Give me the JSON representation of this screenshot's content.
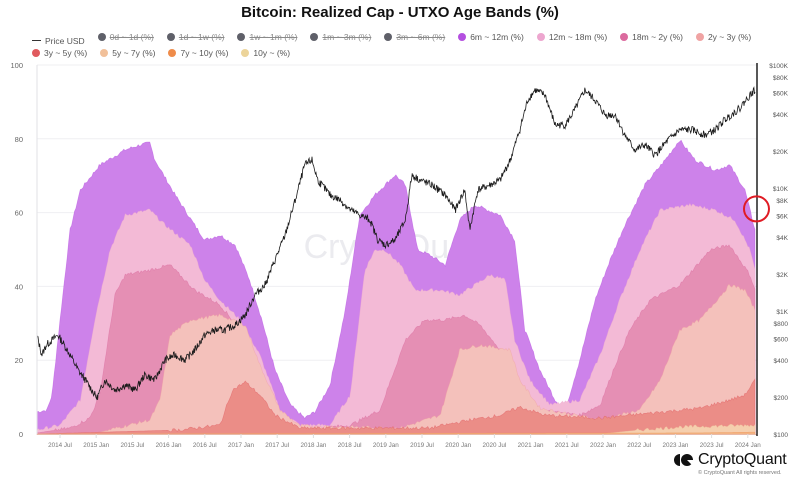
{
  "chart_data": {
    "type": "area",
    "title": "Bitcoin: Realized Cap - UTXO Age Bands (%)",
    "stacked": true,
    "ylim_left": [
      0,
      100
    ],
    "yticks_left": [
      "0",
      "20",
      "40",
      "60",
      "80",
      "100"
    ],
    "yticks_left_values": [
      0,
      20,
      40,
      60,
      80,
      100
    ],
    "y_right_scale": "log",
    "ylim_right": [
      100,
      100000
    ],
    "yticks_right": [
      "$100K",
      "$80K",
      "$60K",
      "$40K",
      "$20K",
      "$10K",
      "$8K",
      "$6K",
      "$4K",
      "$2K",
      "$1K",
      "$800",
      "$600",
      "$400",
      "$200",
      "$100"
    ],
    "yticks_right_values": [
      100000,
      80000,
      60000,
      40000,
      20000,
      10000,
      8000,
      6000,
      4000,
      2000,
      1000,
      800,
      600,
      400,
      200,
      100
    ],
    "xlim": [
      2014.18,
      2024.13
    ],
    "xticks": [
      "2014 Jul",
      "2015 Jan",
      "2015 Jul",
      "2016 Jan",
      "2016 Jul",
      "2017 Jan",
      "2017 Jul",
      "2018 Jan",
      "2018 Jul",
      "2019 Jan",
      "2019 Jul",
      "2020 Jan",
      "2020 Jul",
      "2021 Jan",
      "2021 Jul",
      "2022 Jan",
      "2022 Jul",
      "2023 Jan",
      "2023 Jul",
      "2024 Jan"
    ],
    "xticks_values": [
      2014.5,
      2015.0,
      2015.5,
      2016.0,
      2016.5,
      2017.0,
      2017.5,
      2018.0,
      2018.5,
      2019.0,
      2019.5,
      2020.0,
      2020.5,
      2021.0,
      2021.5,
      2022.0,
      2022.5,
      2023.0,
      2023.5,
      2024.0
    ],
    "grid": true,
    "legend_position": "top-left",
    "watermark": "CryptoQuant",
    "annotation": {
      "type": "circle",
      "color": "#e01b24",
      "x": 2024.12,
      "y_pct": 61
    },
    "legend": [
      {
        "name": "Price USD",
        "color": "#222222",
        "kind": "line",
        "hidden": false
      },
      {
        "name": "0d ~ 1d (%)",
        "color": "#5f6069",
        "kind": "dot",
        "hidden": true
      },
      {
        "name": "1d ~ 1w (%)",
        "color": "#5f6069",
        "kind": "dot",
        "hidden": true
      },
      {
        "name": "1w ~ 1m (%)",
        "color": "#5f6069",
        "kind": "dot",
        "hidden": true
      },
      {
        "name": "1m ~ 3m (%)",
        "color": "#5f6069",
        "kind": "dot",
        "hidden": true
      },
      {
        "name": "3m ~ 6m (%)",
        "color": "#5f6069",
        "kind": "dot",
        "hidden": true
      },
      {
        "name": "6m ~ 12m (%)",
        "color": "#b44fe0",
        "kind": "dot",
        "hidden": false
      },
      {
        "name": "12m ~ 18m (%)",
        "color": "#eda6cf",
        "kind": "dot",
        "hidden": false
      },
      {
        "name": "18m ~ 2y (%)",
        "color": "#db6a9e",
        "kind": "dot",
        "hidden": false
      },
      {
        "name": "2y ~ 3y (%)",
        "color": "#f0a3a3",
        "kind": "dot",
        "hidden": false
      },
      {
        "name": "3y ~ 5y (%)",
        "color": "#e05a5e",
        "kind": "dot",
        "hidden": false
      },
      {
        "name": "5y ~ 7y (%)",
        "color": "#f1c09a",
        "kind": "dot",
        "hidden": false
      },
      {
        "name": "7y ~ 10y (%)",
        "color": "#ef8c4a",
        "kind": "dot",
        "hidden": false
      },
      {
        "name": "10y ~ (%)",
        "color": "#ecd49a",
        "kind": "dot",
        "hidden": false
      }
    ],
    "area_fills": {
      "6m ~ 12m (%)": "#cd82ea",
      "12m ~ 18m (%)": "#f3bad6",
      "18m ~ 2y (%)": "#e58fb4",
      "2y ~ 3y (%)": "#f4c1bb",
      "3y ~ 5y (%)": "#eb8d87",
      "5y ~ 7y (%)": "#f5cfae",
      "7y ~ 10y (%)": "#f3b487",
      "10y ~ (%)": "#f2deb0"
    },
    "bands": [
      {
        "name": "6m ~ 12m (%)",
        "points": [
          [
            2014.18,
            6.0
          ],
          [
            2014.32,
            6.5
          ],
          [
            2014.39,
            10.6
          ],
          [
            2014.47,
            25.5
          ],
          [
            2014.64,
            55.3
          ],
          [
            2014.78,
            66.1
          ],
          [
            2015.05,
            72.9
          ],
          [
            2015.4,
            77.0
          ],
          [
            2015.6,
            78.3
          ],
          [
            2015.74,
            78.9
          ],
          [
            2015.81,
            74.3
          ],
          [
            2016.09,
            64.8
          ],
          [
            2016.36,
            56.6
          ],
          [
            2016.5,
            52.6
          ],
          [
            2016.71,
            53.9
          ],
          [
            2016.92,
            51.2
          ],
          [
            2017.12,
            41.7
          ],
          [
            2017.29,
            30.9
          ],
          [
            2017.47,
            17.3
          ],
          [
            2017.68,
            7.9
          ],
          [
            2017.88,
            4.3
          ],
          [
            2018.02,
            6.0
          ],
          [
            2018.23,
            13.3
          ],
          [
            2018.44,
            33.6
          ],
          [
            2018.64,
            59.3
          ],
          [
            2018.85,
            64.8
          ],
          [
            2019.13,
            70.2
          ],
          [
            2019.27,
            67.5
          ],
          [
            2019.44,
            49.9
          ],
          [
            2019.61,
            48.5
          ],
          [
            2019.82,
            45.8
          ],
          [
            2020.02,
            58.0
          ],
          [
            2020.23,
            62.1
          ],
          [
            2020.58,
            59.3
          ],
          [
            2020.78,
            52.6
          ],
          [
            2020.92,
            28.2
          ],
          [
            2021.13,
            17.3
          ],
          [
            2021.34,
            9.2
          ],
          [
            2021.48,
            6.5
          ],
          [
            2021.68,
            20.1
          ],
          [
            2021.89,
            36.3
          ],
          [
            2022.1,
            47.2
          ],
          [
            2022.3,
            56.6
          ],
          [
            2022.58,
            67.5
          ],
          [
            2022.86,
            74.3
          ],
          [
            2023.06,
            79.7
          ],
          [
            2023.27,
            74.3
          ],
          [
            2023.55,
            71.5
          ],
          [
            2023.75,
            72.9
          ],
          [
            2023.96,
            66.1
          ],
          [
            2024.1,
            55.3
          ]
        ]
      },
      {
        "name": "12m ~ 18m (%)",
        "points": [
          [
            2014.18,
            1.1
          ],
          [
            2014.5,
            2.4
          ],
          [
            2014.78,
            9.2
          ],
          [
            2014.98,
            30.9
          ],
          [
            2015.19,
            49.9
          ],
          [
            2015.4,
            59.3
          ],
          [
            2015.74,
            60.7
          ],
          [
            2015.95,
            56.6
          ],
          [
            2016.3,
            51.2
          ],
          [
            2016.5,
            41.7
          ],
          [
            2016.71,
            36.3
          ],
          [
            2016.99,
            30.9
          ],
          [
            2017.26,
            21.4
          ],
          [
            2017.54,
            6.5
          ],
          [
            2017.81,
            2.4
          ],
          [
            2018.23,
            2.4
          ],
          [
            2018.51,
            10.6
          ],
          [
            2018.71,
            44.4
          ],
          [
            2018.85,
            49.9
          ],
          [
            2018.99,
            49.9
          ],
          [
            2019.2,
            45.8
          ],
          [
            2019.4,
            39.0
          ],
          [
            2019.75,
            39.0
          ],
          [
            2020.02,
            37.7
          ],
          [
            2020.44,
            43.1
          ],
          [
            2020.65,
            41.7
          ],
          [
            2020.78,
            25.5
          ],
          [
            2020.99,
            14.6
          ],
          [
            2021.27,
            7.9
          ],
          [
            2021.68,
            9.2
          ],
          [
            2021.96,
            21.4
          ],
          [
            2022.23,
            36.3
          ],
          [
            2022.51,
            49.9
          ],
          [
            2022.79,
            60.7
          ],
          [
            2023.2,
            62.1
          ],
          [
            2023.55,
            60.7
          ],
          [
            2023.82,
            58.0
          ],
          [
            2024.03,
            49.9
          ],
          [
            2024.1,
            44.4
          ]
        ]
      },
      {
        "name": "18m ~ 2y (%)",
        "points": [
          [
            2014.18,
            0.3
          ],
          [
            2014.64,
            1.6
          ],
          [
            2014.91,
            4.3
          ],
          [
            2015.05,
            10.6
          ],
          [
            2015.26,
            37.7
          ],
          [
            2015.4,
            43.1
          ],
          [
            2015.74,
            44.4
          ],
          [
            2016.02,
            45.8
          ],
          [
            2016.36,
            39.0
          ],
          [
            2016.71,
            35.0
          ],
          [
            2016.99,
            28.2
          ],
          [
            2017.26,
            17.3
          ],
          [
            2017.54,
            5.1
          ],
          [
            2017.81,
            1.1
          ],
          [
            2018.51,
            2.4
          ],
          [
            2018.92,
            6.5
          ],
          [
            2019.27,
            25.5
          ],
          [
            2019.54,
            30.9
          ],
          [
            2019.82,
            30.9
          ],
          [
            2020.09,
            32.2
          ],
          [
            2020.3,
            29.5
          ],
          [
            2020.58,
            22.8
          ],
          [
            2020.85,
            11.9
          ],
          [
            2021.13,
            6.5
          ],
          [
            2021.68,
            5.1
          ],
          [
            2021.96,
            7.9
          ],
          [
            2022.17,
            18.7
          ],
          [
            2022.37,
            28.2
          ],
          [
            2022.65,
            36.3
          ],
          [
            2023.06,
            40.4
          ],
          [
            2023.48,
            49.9
          ],
          [
            2023.75,
            51.2
          ],
          [
            2024.03,
            43.1
          ],
          [
            2024.1,
            39.0
          ]
        ]
      },
      {
        "name": "2y ~ 3y (%)",
        "points": [
          [
            2014.18,
            0.0
          ],
          [
            2015.05,
            0.5
          ],
          [
            2015.74,
            3.8
          ],
          [
            2015.88,
            9.2
          ],
          [
            2016.02,
            26.8
          ],
          [
            2016.3,
            30.9
          ],
          [
            2016.71,
            32.2
          ],
          [
            2017.06,
            29.5
          ],
          [
            2017.26,
            18.7
          ],
          [
            2017.54,
            6.5
          ],
          [
            2017.81,
            2.2
          ],
          [
            2019.2,
            1.6
          ],
          [
            2019.75,
            5.1
          ],
          [
            2020.02,
            22.8
          ],
          [
            2020.3,
            24.1
          ],
          [
            2020.72,
            22.8
          ],
          [
            2020.85,
            14.6
          ],
          [
            2021.13,
            7.0
          ],
          [
            2021.96,
            3.8
          ],
          [
            2022.51,
            6.5
          ],
          [
            2022.79,
            14.6
          ],
          [
            2023.06,
            28.2
          ],
          [
            2023.34,
            30.9
          ],
          [
            2023.75,
            40.4
          ],
          [
            2023.96,
            39.0
          ],
          [
            2024.1,
            33.6
          ]
        ]
      },
      {
        "name": "3y ~ 5y (%)",
        "points": [
          [
            2014.18,
            0.0
          ],
          [
            2016.16,
            1.1
          ],
          [
            2016.71,
            2.4
          ],
          [
            2016.88,
            11.9
          ],
          [
            2017.06,
            14.1
          ],
          [
            2017.26,
            10.6
          ],
          [
            2017.47,
            5.1
          ],
          [
            2017.81,
            1.6
          ],
          [
            2019.61,
            1.6
          ],
          [
            2020.16,
            3.8
          ],
          [
            2020.58,
            5.1
          ],
          [
            2020.85,
            7.3
          ],
          [
            2021.2,
            5.1
          ],
          [
            2021.96,
            4.3
          ],
          [
            2023.34,
            7.0
          ],
          [
            2023.75,
            9.2
          ],
          [
            2023.96,
            10.6
          ],
          [
            2024.1,
            14.6
          ]
        ]
      },
      {
        "name": "5y ~ 7y (%)",
        "points": [
          [
            2014.18,
            0.0
          ],
          [
            2021.96,
            0.0
          ],
          [
            2022.51,
            1.1
          ],
          [
            2023.06,
            1.9
          ],
          [
            2024.1,
            2.4
          ]
        ]
      },
      {
        "name": "7y ~ 10y (%)",
        "points": [
          [
            2014.18,
            0.0
          ],
          [
            2023.34,
            0.3
          ],
          [
            2024.1,
            0.5
          ]
        ]
      },
      {
        "name": "10y ~ (%)",
        "points": [
          [
            2014.18,
            0.0
          ],
          [
            2024.1,
            0.0
          ]
        ]
      }
    ],
    "price_usd": [
      [
        2014.18,
        638
      ],
      [
        2014.25,
        439
      ],
      [
        2014.31,
        529
      ],
      [
        2014.39,
        581
      ],
      [
        2014.47,
        638
      ],
      [
        2014.56,
        529
      ],
      [
        2014.64,
        439
      ],
      [
        2014.75,
        331
      ],
      [
        2014.85,
        275
      ],
      [
        2014.94,
        228
      ],
      [
        2015.01,
        196
      ],
      [
        2015.12,
        275
      ],
      [
        2015.26,
        228
      ],
      [
        2015.4,
        250
      ],
      [
        2015.54,
        228
      ],
      [
        2015.67,
        302
      ],
      [
        2015.81,
        275
      ],
      [
        2015.95,
        400
      ],
      [
        2016.09,
        439
      ],
      [
        2016.23,
        400
      ],
      [
        2016.36,
        482
      ],
      [
        2016.5,
        638
      ],
      [
        2016.64,
        701
      ],
      [
        2016.78,
        701
      ],
      [
        2016.92,
        769
      ],
      [
        2017.06,
        927
      ],
      [
        2017.19,
        1349
      ],
      [
        2017.33,
        1627
      ],
      [
        2017.47,
        2600
      ],
      [
        2017.61,
        4150
      ],
      [
        2017.75,
        7990
      ],
      [
        2017.88,
        15380
      ],
      [
        2017.98,
        16900
      ],
      [
        2018.06,
        11610
      ],
      [
        2018.23,
        8770
      ],
      [
        2018.37,
        7990
      ],
      [
        2018.51,
        6630
      ],
      [
        2018.64,
        6030
      ],
      [
        2018.78,
        5500
      ],
      [
        2018.89,
        3780
      ],
      [
        2018.99,
        3440
      ],
      [
        2019.13,
        3780
      ],
      [
        2019.27,
        5500
      ],
      [
        2019.36,
        12760
      ],
      [
        2019.47,
        11610
      ],
      [
        2019.64,
        10570
      ],
      [
        2019.82,
        8770
      ],
      [
        2019.96,
        6630
      ],
      [
        2020.09,
        9640
      ],
      [
        2020.16,
        4560
      ],
      [
        2020.27,
        9640
      ],
      [
        2020.44,
        10570
      ],
      [
        2020.58,
        11610
      ],
      [
        2020.72,
        16900
      ],
      [
        2020.85,
        29650
      ],
      [
        2020.96,
        51880
      ],
      [
        2021.06,
        62630
      ],
      [
        2021.2,
        57020
      ],
      [
        2021.34,
        32540
      ],
      [
        2021.48,
        32540
      ],
      [
        2021.61,
        43060
      ],
      [
        2021.75,
        62630
      ],
      [
        2021.89,
        51880
      ],
      [
        2022.03,
        39190
      ],
      [
        2022.17,
        39190
      ],
      [
        2022.3,
        26990
      ],
      [
        2022.44,
        20370
      ],
      [
        2022.58,
        22390
      ],
      [
        2022.72,
        18550
      ],
      [
        2022.9,
        24570
      ],
      [
        2023.06,
        29650
      ],
      [
        2023.23,
        29650
      ],
      [
        2023.41,
        26990
      ],
      [
        2023.55,
        29650
      ],
      [
        2023.68,
        35730
      ],
      [
        2023.89,
        44710
      ],
      [
        2024.03,
        57020
      ],
      [
        2024.1,
        62630
      ]
    ]
  },
  "footer": {
    "brand": "CryptoQuant",
    "copyright": "© CryptoQuant All rights reserved."
  }
}
